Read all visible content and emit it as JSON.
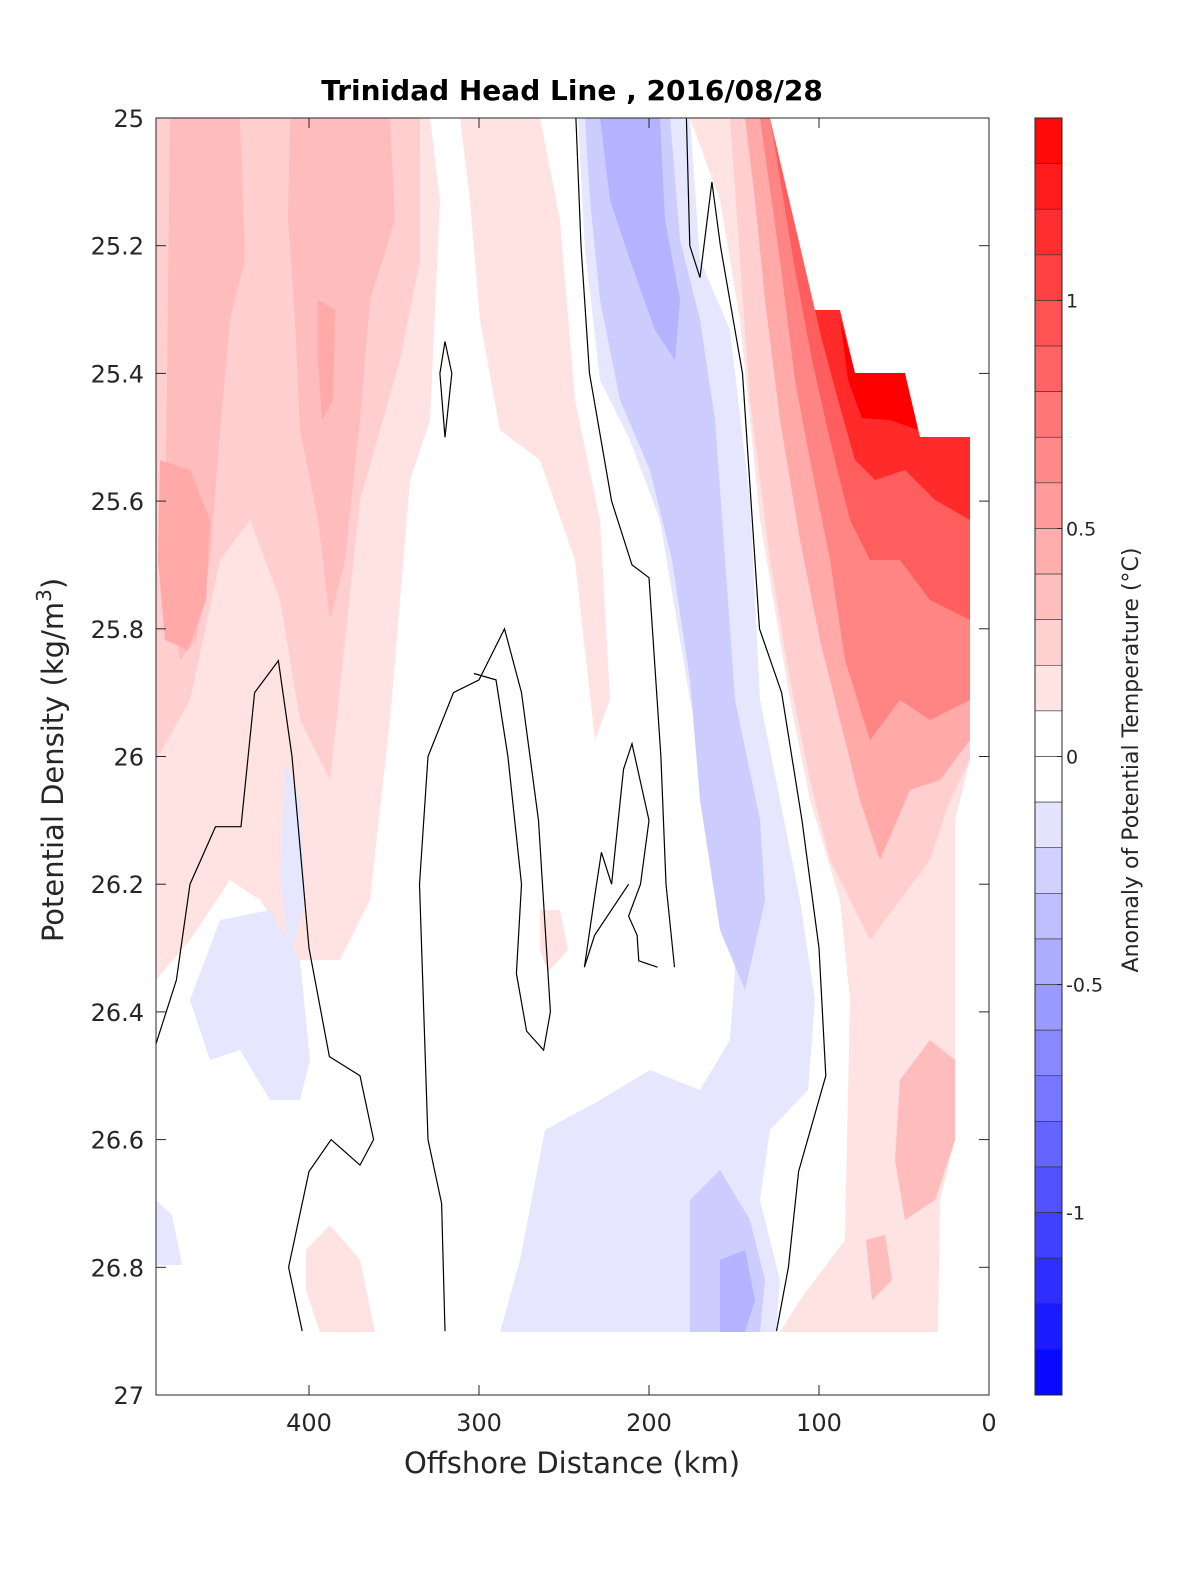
{
  "chart_data": {
    "type": "heatmap",
    "subtype": "filled contour section",
    "title": "Trinidad Head Line , 2016/08/28",
    "xlabel": "Offshore Distance (km)",
    "ylabel_main": "Potential Density (kg/m",
    "ylabel_sup": "3",
    "ylabel_close": ")",
    "colorbar_label": "Anomaly of Potential Temperature (°C)",
    "xlim": [
      490,
      0
    ],
    "ylim": [
      27,
      25
    ],
    "x_reversed": true,
    "y_reversed": true,
    "x_ticks": [
      400,
      300,
      200,
      100,
      0
    ],
    "x_tick_labels": [
      "400",
      "300",
      "200",
      "100",
      "0"
    ],
    "y_ticks": [
      25,
      25.2,
      25.4,
      25.6,
      25.8,
      26,
      26.2,
      26.4,
      26.6,
      26.8,
      27
    ],
    "y_tick_labels": [
      "25",
      "25.2",
      "25.4",
      "25.6",
      "25.8",
      "26",
      "26.2",
      "26.4",
      "26.6",
      "26.8",
      "27"
    ],
    "colorbar_range": [
      -1.4,
      1.4
    ],
    "colorbar_step": 0.1,
    "colorbar_ticks": [
      1,
      0.5,
      0,
      -0.5,
      -1
    ],
    "colorbar_tick_labels": [
      "1",
      "0.5",
      "0",
      "-0.5",
      "-1"
    ],
    "colormap": "blue-white-red",
    "colors": {
      "positive": "#ff0000",
      "negative": "#0000ff",
      "zero": "#ffffff",
      "contour": "#000000"
    },
    "zero_contour_lines": [
      [
        [
          243,
          25.0
        ],
        [
          240,
          25.2
        ],
        [
          235,
          25.4
        ],
        [
          222,
          25.6
        ],
        [
          210,
          25.7
        ],
        [
          200,
          25.72
        ],
        [
          193,
          26.0
        ],
        [
          190,
          26.2
        ],
        [
          185,
          26.33
        ]
      ],
      [
        [
          178,
          25.0
        ],
        [
          176,
          25.2
        ],
        [
          170,
          25.25
        ],
        [
          163,
          25.1
        ],
        [
          158,
          25.2
        ],
        [
          145,
          25.4
        ],
        [
          140,
          25.6
        ],
        [
          135,
          25.8
        ],
        [
          122,
          25.9
        ],
        [
          110,
          26.1
        ],
        [
          100,
          26.3
        ],
        [
          96,
          26.5
        ],
        [
          112,
          26.65
        ],
        [
          118,
          26.8
        ],
        [
          125,
          26.9
        ]
      ],
      [
        [
          320,
          25.35
        ],
        [
          316,
          25.4
        ],
        [
          320,
          25.5
        ],
        [
          323,
          25.4
        ],
        [
          320,
          25.35
        ]
      ],
      [
        [
          490,
          26.45
        ],
        [
          484,
          26.4
        ],
        [
          478,
          26.35
        ],
        [
          470,
          26.2
        ],
        [
          455,
          26.11
        ],
        [
          440,
          26.11
        ],
        [
          432,
          25.9
        ],
        [
          418,
          25.85
        ],
        [
          410,
          26.0
        ],
        [
          400,
          26.3
        ],
        [
          388,
          26.47
        ],
        [
          370,
          26.5
        ],
        [
          362,
          26.6
        ],
        [
          370,
          26.64
        ],
        [
          387,
          26.6
        ],
        [
          400,
          26.65
        ],
        [
          412,
          26.8
        ],
        [
          404,
          26.9
        ]
      ],
      [
        [
          320,
          26.9
        ],
        [
          322,
          26.7
        ],
        [
          330,
          26.6
        ],
        [
          335,
          26.2
        ],
        [
          330,
          26.0
        ],
        [
          315,
          25.9
        ],
        [
          300,
          25.88
        ],
        [
          285,
          25.8
        ],
        [
          275,
          25.9
        ],
        [
          270,
          26.0
        ],
        [
          265,
          26.1
        ],
        [
          258,
          26.4
        ],
        [
          262,
          26.46
        ],
        [
          272,
          26.43
        ],
        [
          278,
          26.34
        ],
        [
          275,
          26.2
        ],
        [
          283,
          26.0
        ],
        [
          290,
          25.88
        ],
        [
          303,
          25.87
        ]
      ],
      [
        [
          195,
          26.33
        ],
        [
          206,
          26.32
        ],
        [
          207,
          26.28
        ],
        [
          212,
          26.25
        ],
        [
          205,
          26.2
        ],
        [
          200,
          26.1
        ],
        [
          210,
          25.98
        ],
        [
          215,
          26.02
        ],
        [
          222,
          26.2
        ],
        [
          228,
          26.15
        ],
        [
          232,
          26.22
        ],
        [
          238,
          26.33
        ],
        [
          232,
          26.28
        ],
        [
          212,
          26.2
        ]
      ]
    ],
    "notes_visible": "Warm (red) anomalies up to about +1.4 near the coast at lighter densities; weak cool (blue) band near 200 km offshore; white regions near zero."
  }
}
